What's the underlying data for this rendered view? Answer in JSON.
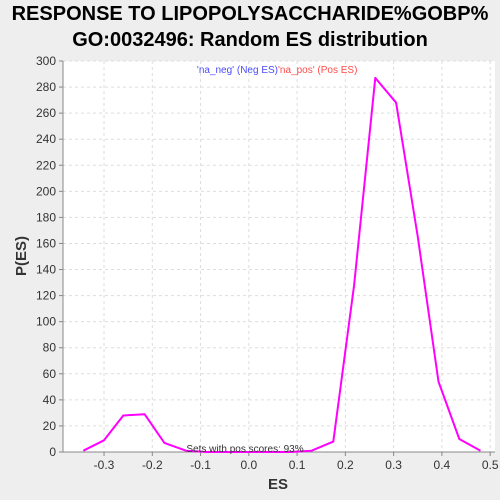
{
  "chart_data": {
    "type": "line",
    "title": "RESPONSE TO LIPOPOLYSACCHARIDE%GOBP%",
    "subtitle": "GO:0032496: Random ES distribution",
    "xlabel": "ES",
    "ylabel": "P(ES)",
    "xlim": [
      -0.385,
      0.51
    ],
    "ylim": [
      0,
      300
    ],
    "x_ticks": [
      "-0.3",
      "-0.2",
      "-0.1",
      "0.0",
      "0.1",
      "0.2",
      "0.3",
      "0.4",
      "0.5"
    ],
    "x_tick_values": [
      -0.3,
      -0.2,
      -0.1,
      0.0,
      0.1,
      0.2,
      0.3,
      0.4,
      0.5
    ],
    "y_ticks": [
      "0",
      "20",
      "40",
      "60",
      "80",
      "100",
      "120",
      "140",
      "160",
      "180",
      "200",
      "220",
      "240",
      "260",
      "280",
      "300"
    ],
    "y_tick_values": [
      0,
      20,
      40,
      60,
      80,
      100,
      120,
      140,
      160,
      180,
      200,
      220,
      240,
      260,
      280,
      300
    ],
    "grid": true,
    "legend": [
      {
        "label": "'na_neg' (Neg ES)",
        "color": "#4b4bff"
      },
      {
        "label": "'na_pos' (Pos ES)",
        "color": "#ff4b4b"
      }
    ],
    "legend_placement": "top-center",
    "annotation": "Sets with pos scores: 93%",
    "series": [
      {
        "color": "#ff00ff",
        "x": [
          -0.343,
          -0.3,
          -0.26,
          -0.216,
          -0.175,
          -0.13,
          -0.087,
          -0.044,
          0.0,
          0.044,
          0.087,
          0.13,
          0.175,
          0.218,
          0.262,
          0.305,
          0.35,
          0.393,
          0.436,
          0.48
        ],
        "y": [
          1,
          9,
          28,
          29,
          7,
          1,
          0,
          0,
          0,
          0,
          0,
          1,
          8,
          128,
          287,
          268,
          165,
          54,
          10,
          1
        ]
      }
    ]
  }
}
